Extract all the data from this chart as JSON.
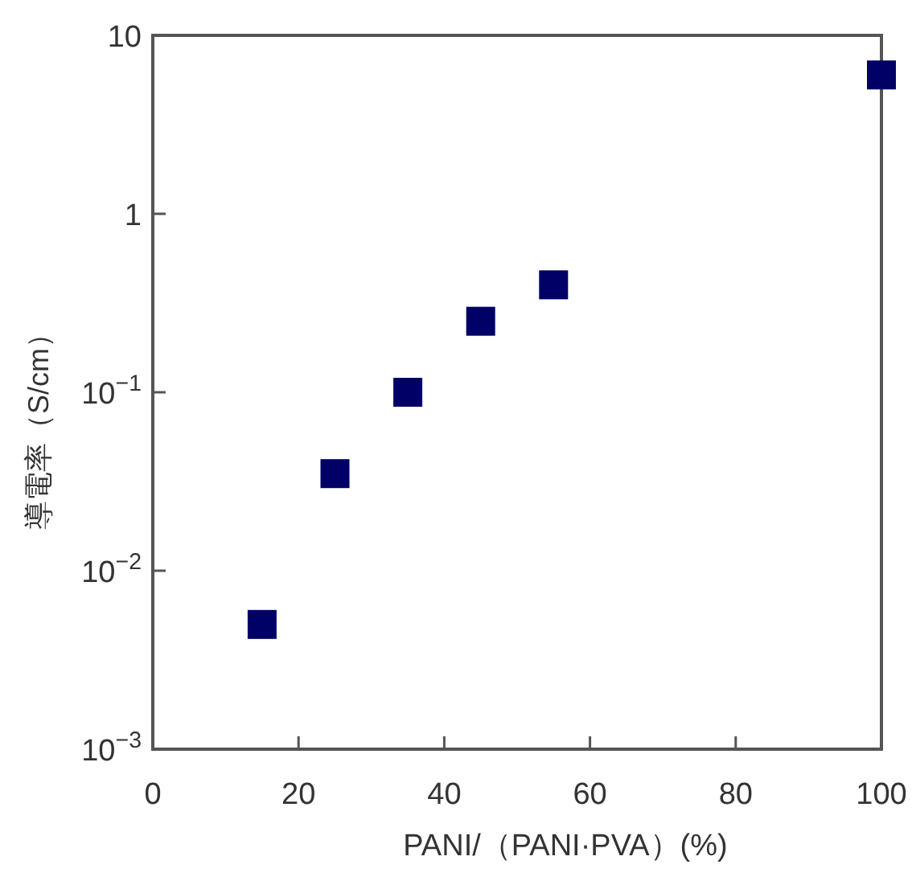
{
  "chart_data": {
    "type": "scatter",
    "xlabel": "PANI/（PANI·PVA）(%)",
    "ylabel": "導電率（S/cm）",
    "log": "y",
    "marker": "square",
    "grid": false,
    "xlim": [
      0,
      100
    ],
    "xticks": [
      0,
      20,
      40,
      60,
      80,
      100
    ],
    "ylim": [
      0.001,
      10
    ],
    "yticks": [
      {
        "value": 0.001,
        "label": "10$^{−3}$"
      },
      {
        "value": 0.01,
        "label": "10$^{−2}$"
      },
      {
        "value": 0.1,
        "label": "10$^{−1}$"
      },
      1,
      10
    ],
    "series": [
      {
        "color": "#000066",
        "x": [
          15,
          25,
          35,
          45,
          55,
          100
        ],
        "values": [
          0.005,
          0.035,
          0.1,
          0.25,
          0.4,
          6
        ]
      }
    ]
  }
}
